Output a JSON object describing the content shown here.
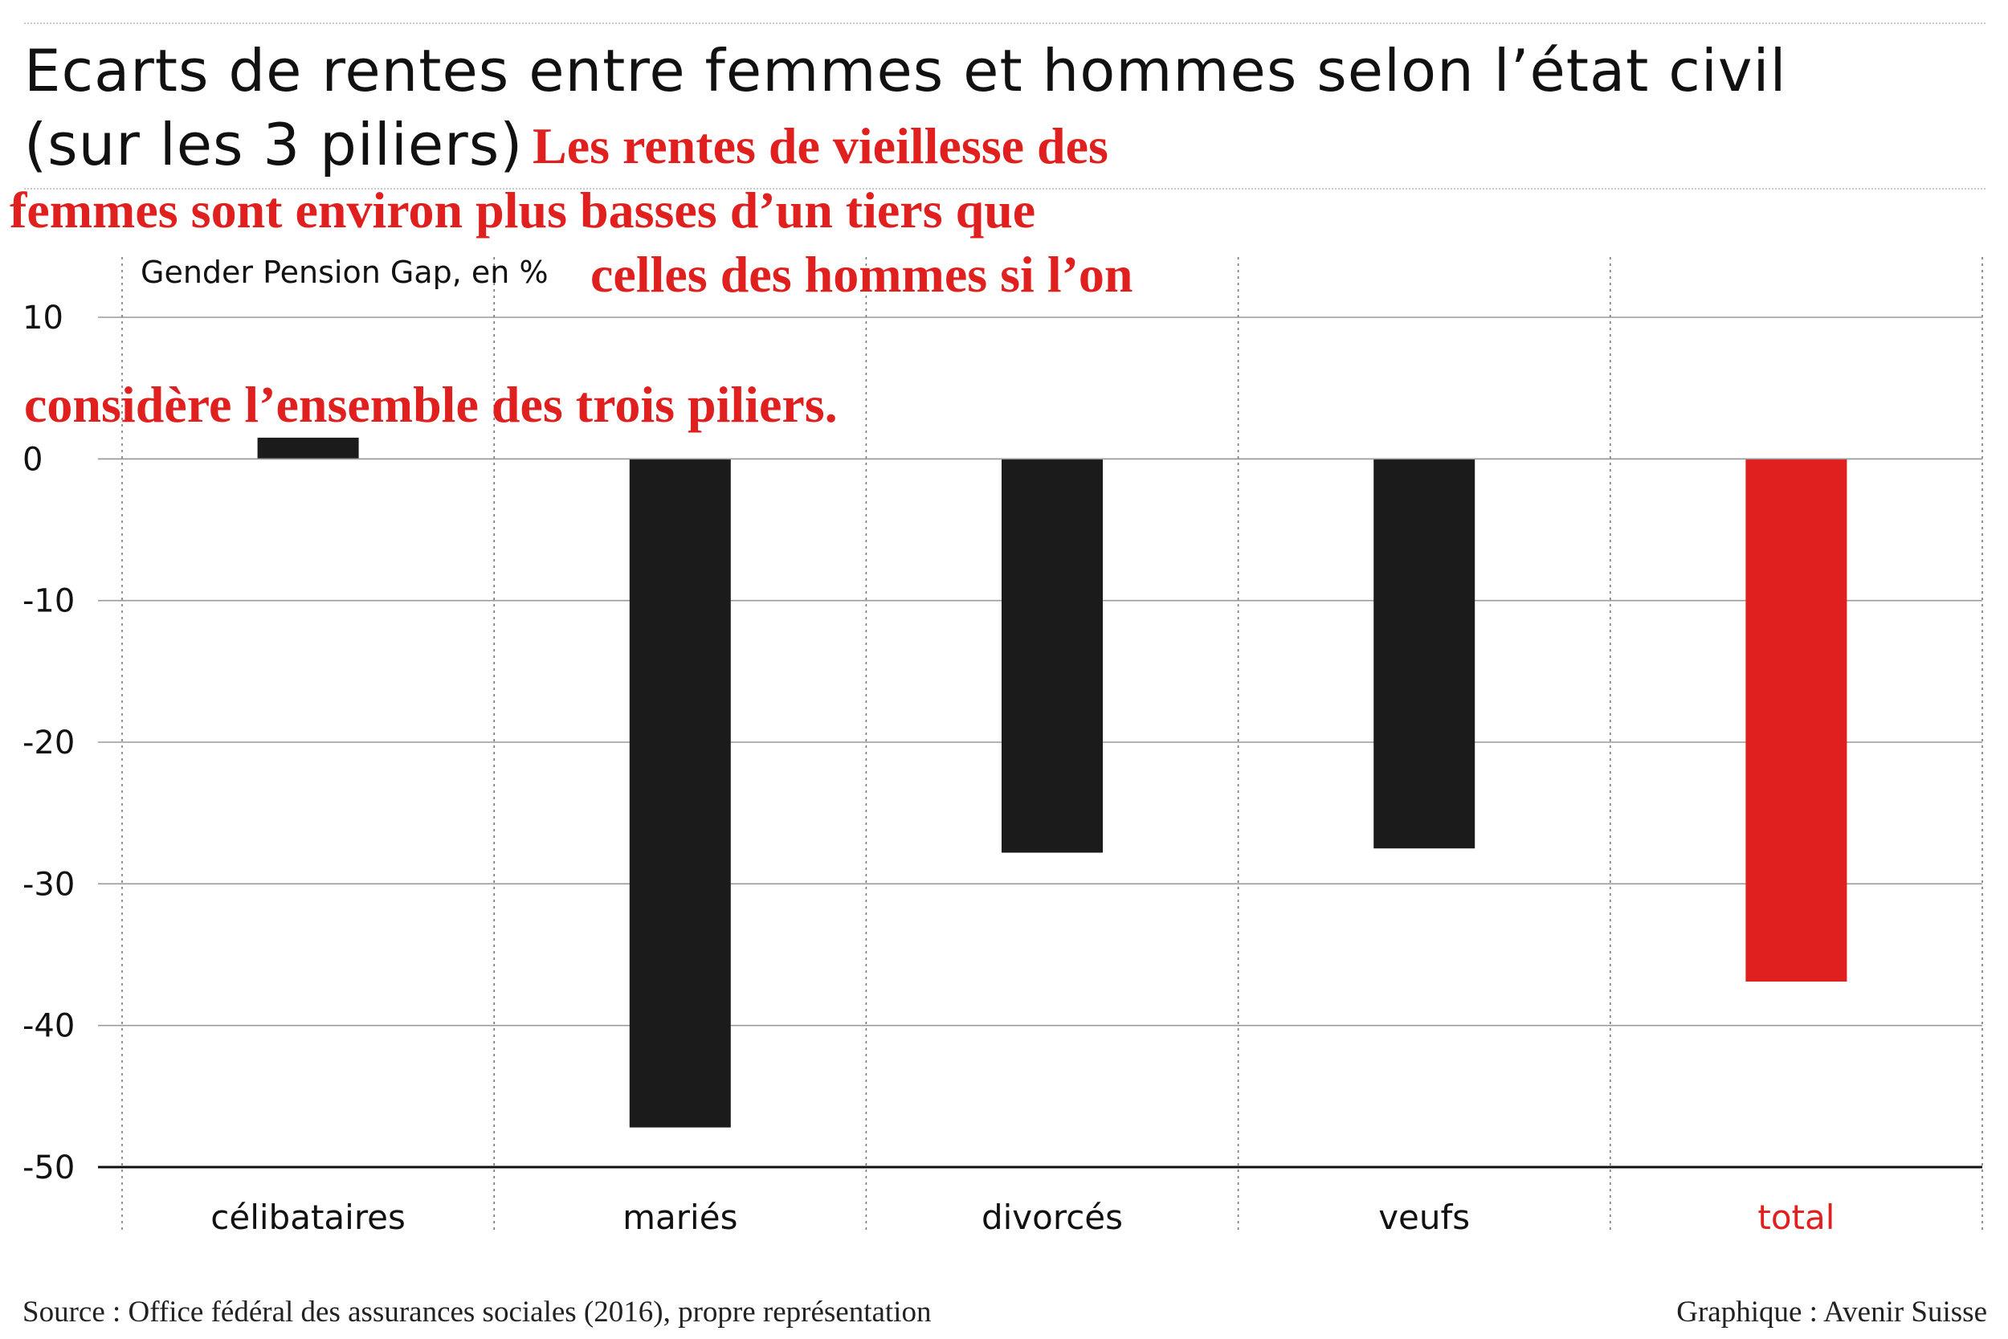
{
  "header": {
    "title_line1": "Ecarts de rentes entre femmes et hommes selon l’état civil",
    "title_line2": "(sur les 3 piliers)"
  },
  "annotation": {
    "line1": "Les rentes de vieillesse des",
    "line2": "femmes sont environ plus basses d’un tiers que",
    "line3": "celles des hommes si l’on",
    "line4": "considère l’ensemble des trois piliers."
  },
  "footer": {
    "source": "Source : Office fédéral des assurances sociales (2016), propre représentation",
    "credit": "Graphique : Avenir Suisse"
  },
  "colors": {
    "bar": "#1b1b1b",
    "highlight": "#e01f1f",
    "grid": "#9a9a9a",
    "text": "#111111"
  },
  "chart_data": {
    "type": "bar",
    "ylabel": "Gender Pension Gap, en %",
    "categories": [
      "célibataires",
      "mariés",
      "divorcés",
      "veufs",
      "total"
    ],
    "values": [
      1.5,
      -47.2,
      -27.8,
      -27.5,
      -36.9
    ],
    "highlight_category": "total",
    "ylim": [
      -50,
      10
    ],
    "yticks": [
      10,
      0,
      -10,
      -20,
      -30,
      -40,
      -50
    ],
    "grid": true
  }
}
